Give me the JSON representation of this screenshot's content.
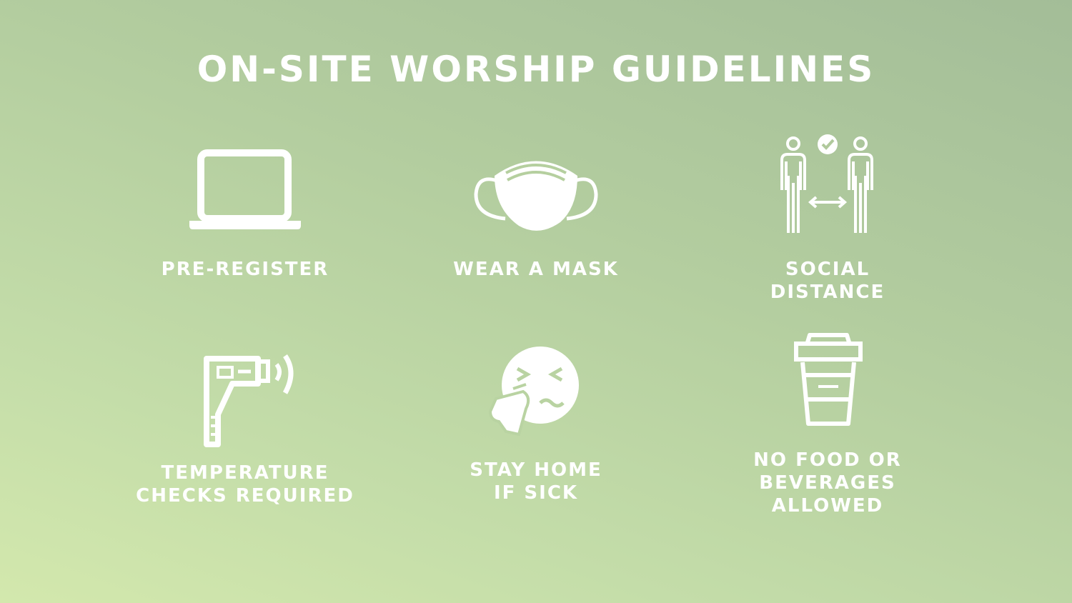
{
  "title": "ON-SITE WORSHIP GUIDELINES",
  "colors": {
    "text": "#ffffff",
    "background_top": "#a3bd98",
    "background_bottom": "#d3e8ad"
  },
  "guidelines": [
    {
      "icon": "laptop-icon",
      "lines": [
        "PRE-REGISTER"
      ]
    },
    {
      "icon": "face-mask-icon",
      "lines": [
        "WEAR A MASK"
      ]
    },
    {
      "icon": "social-distance-icon",
      "lines": [
        "SOCIAL",
        "DISTANCE"
      ]
    },
    {
      "icon": "thermometer-gun-icon",
      "lines": [
        "TEMPERATURE",
        "CHECKS REQUIRED"
      ]
    },
    {
      "icon": "sneezing-face-icon",
      "lines": [
        "STAY HOME",
        "IF SICK"
      ]
    },
    {
      "icon": "coffee-cup-icon",
      "lines": [
        "NO FOOD OR",
        "BEVERAGES",
        "ALLOWED"
      ]
    }
  ]
}
